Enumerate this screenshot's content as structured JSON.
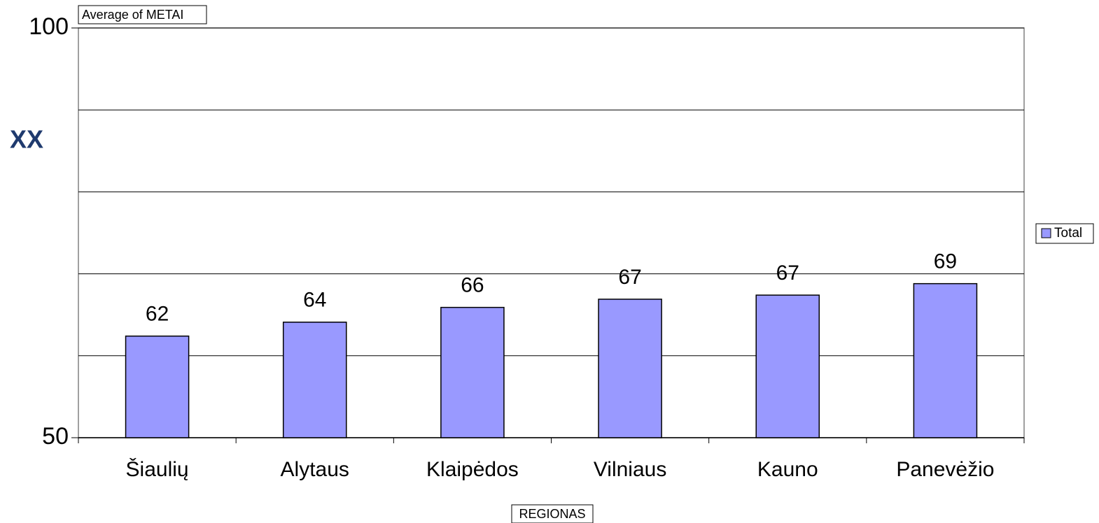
{
  "chart_data": {
    "type": "bar",
    "title": "XX",
    "field_label": "Average of METAI",
    "x_label": "REGIONAS",
    "categories": [
      "Šiaulių",
      "Alytaus",
      "Klaipėdos",
      "Vilniaus",
      "Kauno",
      "Panevėžio"
    ],
    "series": [
      {
        "name": "Total",
        "color": "#9999ff",
        "values": [
          62.4,
          64.1,
          65.9,
          66.9,
          67.4,
          68.8
        ],
        "value_labels": [
          "62",
          "64",
          "66",
          "67",
          "67",
          "69"
        ]
      }
    ],
    "ylim": [
      50,
      100
    ],
    "yticks": [
      50,
      100
    ],
    "ygrid": [
      60,
      70,
      80,
      90,
      100
    ],
    "grid": true,
    "legend": "right"
  }
}
